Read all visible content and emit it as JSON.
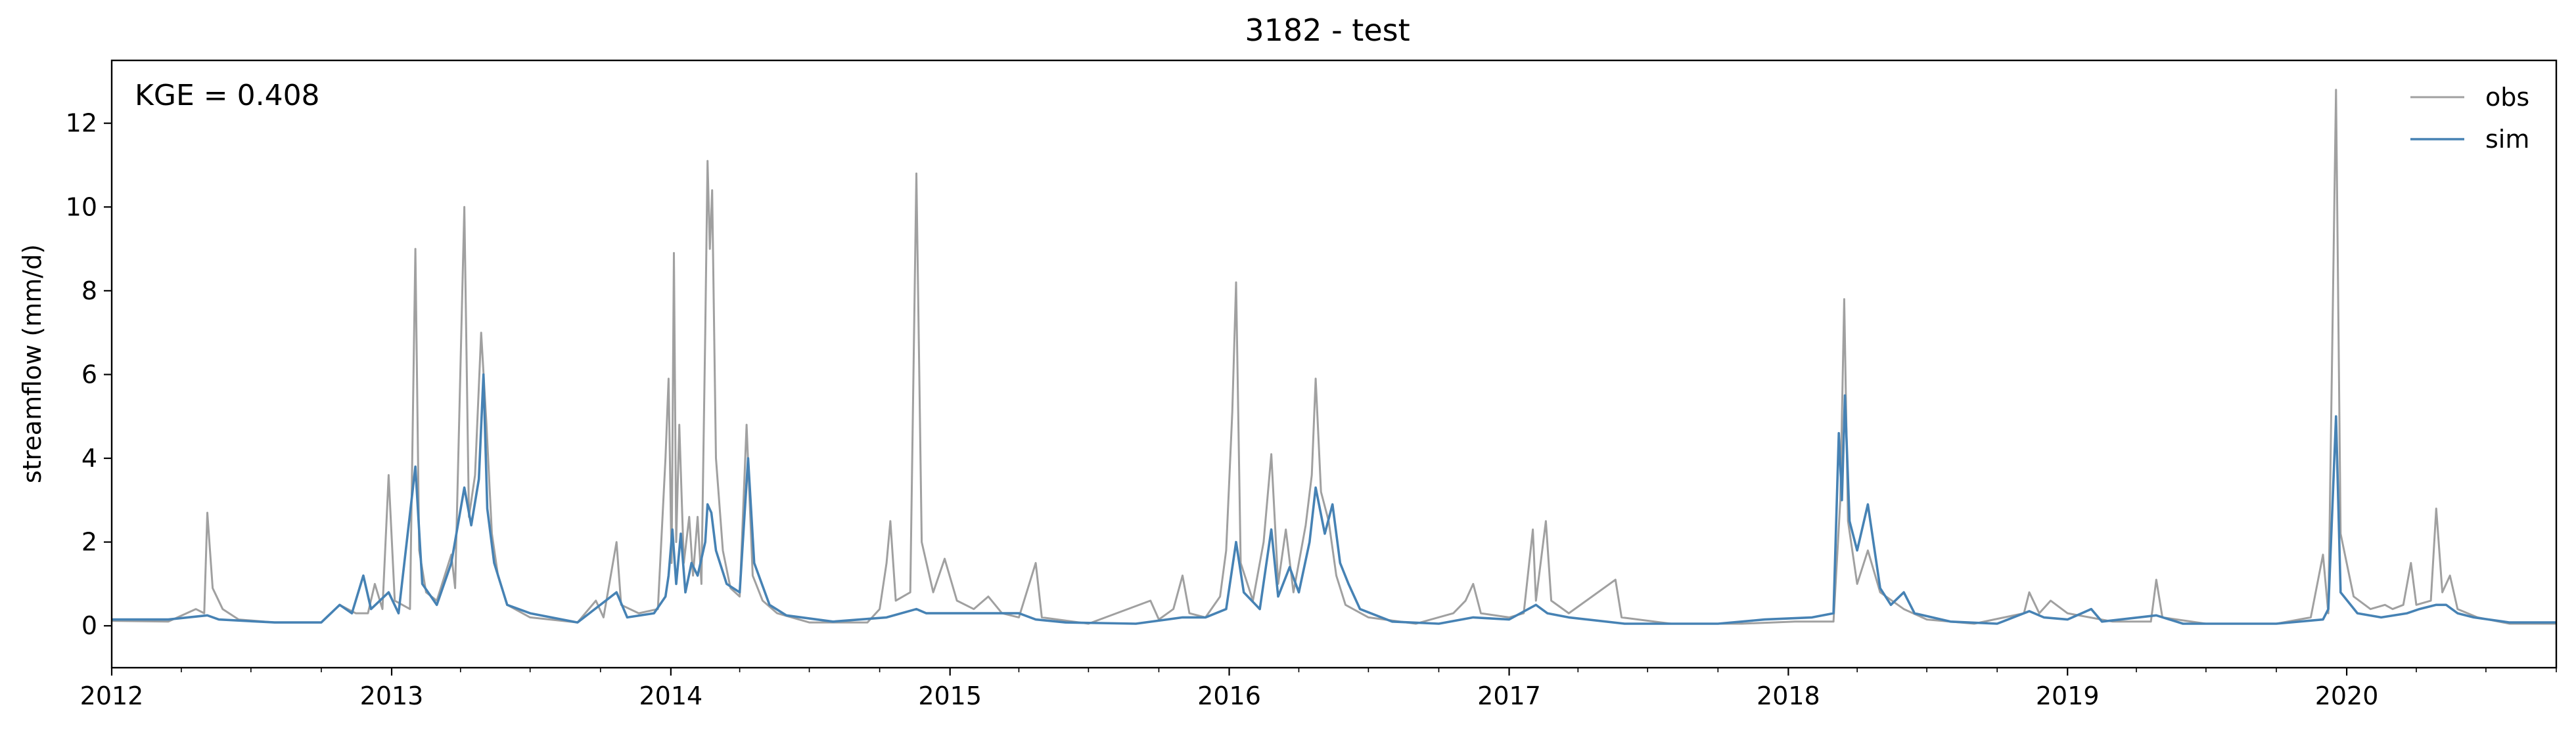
{
  "chart_data": {
    "type": "line",
    "title": "3182 - test",
    "xlabel": "",
    "ylabel": "streamflow (mm/d)",
    "annotation": "KGE = 0.408",
    "xlim": [
      "2012-01-01",
      "2020-10-01"
    ],
    "ylim": [
      -1.0,
      13.5
    ],
    "xticks": [
      "2012",
      "2013",
      "2014",
      "2015",
      "2016",
      "2017",
      "2018",
      "2019",
      "2020"
    ],
    "yticks": [
      0,
      2,
      4,
      6,
      8,
      10,
      12
    ],
    "legend_position": "top-right",
    "grid": false,
    "series": [
      {
        "name": "obs",
        "color": "#a0a0a0",
        "points": [
          [
            "2012-01-01",
            0.12
          ],
          [
            "2012-03-15",
            0.1
          ],
          [
            "2012-04-20",
            0.4
          ],
          [
            "2012-05-01",
            0.3
          ],
          [
            "2012-05-05",
            2.7
          ],
          [
            "2012-05-12",
            0.9
          ],
          [
            "2012-05-25",
            0.4
          ],
          [
            "2012-06-15",
            0.15
          ],
          [
            "2012-08-01",
            0.08
          ],
          [
            "2012-10-01",
            0.08
          ],
          [
            "2012-10-25",
            0.5
          ],
          [
            "2012-11-15",
            0.3
          ],
          [
            "2012-12-01",
            0.3
          ],
          [
            "2012-12-10",
            1.0
          ],
          [
            "2012-12-20",
            0.4
          ],
          [
            "2012-12-28",
            3.6
          ],
          [
            "2013-01-05",
            0.6
          ],
          [
            "2013-01-15",
            0.5
          ],
          [
            "2013-01-25",
            0.4
          ],
          [
            "2013-02-01",
            9.0
          ],
          [
            "2013-02-06",
            1.8
          ],
          [
            "2013-02-15",
            0.8
          ],
          [
            "2013-03-01",
            0.6
          ],
          [
            "2013-03-20",
            1.7
          ],
          [
            "2013-03-25",
            0.9
          ],
          [
            "2013-04-06",
            10.0
          ],
          [
            "2013-04-12",
            2.6
          ],
          [
            "2013-04-20",
            3.6
          ],
          [
            "2013-04-28",
            7.0
          ],
          [
            "2013-05-05",
            4.8
          ],
          [
            "2013-05-12",
            2.2
          ],
          [
            "2013-05-20",
            1.2
          ],
          [
            "2013-06-01",
            0.5
          ],
          [
            "2013-07-01",
            0.2
          ],
          [
            "2013-09-01",
            0.08
          ],
          [
            "2013-09-25",
            0.6
          ],
          [
            "2013-10-05",
            0.2
          ],
          [
            "2013-10-22",
            2.0
          ],
          [
            "2013-10-28",
            0.5
          ],
          [
            "2013-11-20",
            0.3
          ],
          [
            "2013-12-15",
            0.4
          ],
          [
            "2013-12-25",
            4.0
          ],
          [
            "2013-12-29",
            5.9
          ],
          [
            "2014-01-02",
            1.5
          ],
          [
            "2014-01-05",
            8.9
          ],
          [
            "2014-01-08",
            2.0
          ],
          [
            "2014-01-12",
            4.8
          ],
          [
            "2014-01-18",
            1.5
          ],
          [
            "2014-01-25",
            2.6
          ],
          [
            "2014-01-30",
            1.2
          ],
          [
            "2014-02-05",
            2.6
          ],
          [
            "2014-02-10",
            1.0
          ],
          [
            "2014-02-15",
            7.0
          ],
          [
            "2014-02-18",
            11.1
          ],
          [
            "2014-02-21",
            9.0
          ],
          [
            "2014-02-24",
            10.4
          ],
          [
            "2014-03-01",
            4.0
          ],
          [
            "2014-03-10",
            1.8
          ],
          [
            "2014-03-20",
            0.9
          ],
          [
            "2014-04-01",
            0.7
          ],
          [
            "2014-04-10",
            4.8
          ],
          [
            "2014-04-18",
            1.2
          ],
          [
            "2014-05-01",
            0.6
          ],
          [
            "2014-05-20",
            0.3
          ],
          [
            "2014-07-01",
            0.08
          ],
          [
            "2014-09-15",
            0.08
          ],
          [
            "2014-10-01",
            0.4
          ],
          [
            "2014-10-10",
            1.5
          ],
          [
            "2014-10-15",
            2.5
          ],
          [
            "2014-10-22",
            0.6
          ],
          [
            "2014-11-10",
            0.8
          ],
          [
            "2014-11-18",
            10.8
          ],
          [
            "2014-11-25",
            2.0
          ],
          [
            "2014-12-10",
            0.8
          ],
          [
            "2014-12-25",
            1.6
          ],
          [
            "2015-01-10",
            0.6
          ],
          [
            "2015-02-01",
            0.4
          ],
          [
            "2015-02-20",
            0.7
          ],
          [
            "2015-03-10",
            0.3
          ],
          [
            "2015-04-01",
            0.2
          ],
          [
            "2015-04-23",
            1.5
          ],
          [
            "2015-05-01",
            0.2
          ],
          [
            "2015-07-01",
            0.05
          ],
          [
            "2015-09-20",
            0.6
          ],
          [
            "2015-10-01",
            0.15
          ],
          [
            "2015-10-20",
            0.4
          ],
          [
            "2015-11-01",
            1.2
          ],
          [
            "2015-11-10",
            0.3
          ],
          [
            "2015-12-01",
            0.2
          ],
          [
            "2015-12-20",
            0.7
          ],
          [
            "2015-12-28",
            1.8
          ],
          [
            "2016-01-05",
            5.1
          ],
          [
            "2016-01-10",
            8.2
          ],
          [
            "2016-01-16",
            1.5
          ],
          [
            "2016-02-01",
            0.6
          ],
          [
            "2016-02-15",
            2.0
          ],
          [
            "2016-02-25",
            4.1
          ],
          [
            "2016-03-05",
            1.0
          ],
          [
            "2016-03-15",
            2.3
          ],
          [
            "2016-03-25",
            0.8
          ],
          [
            "2016-04-10",
            2.4
          ],
          [
            "2016-04-18",
            3.6
          ],
          [
            "2016-04-23",
            5.9
          ],
          [
            "2016-04-30",
            3.2
          ],
          [
            "2016-05-10",
            2.5
          ],
          [
            "2016-05-20",
            1.2
          ],
          [
            "2016-06-01",
            0.5
          ],
          [
            "2016-07-01",
            0.2
          ],
          [
            "2016-09-01",
            0.05
          ],
          [
            "2016-10-20",
            0.3
          ],
          [
            "2016-11-05",
            0.6
          ],
          [
            "2016-11-15",
            1.0
          ],
          [
            "2016-11-25",
            0.3
          ],
          [
            "2017-01-01",
            0.2
          ],
          [
            "2017-01-20",
            0.3
          ],
          [
            "2017-02-01",
            2.3
          ],
          [
            "2017-02-05",
            0.6
          ],
          [
            "2017-02-18",
            2.5
          ],
          [
            "2017-02-25",
            0.6
          ],
          [
            "2017-03-20",
            0.3
          ],
          [
            "2017-05-20",
            1.1
          ],
          [
            "2017-05-28",
            0.2
          ],
          [
            "2017-08-01",
            0.05
          ],
          [
            "2017-11-01",
            0.05
          ],
          [
            "2018-01-10",
            0.1
          ],
          [
            "2018-03-01",
            0.1
          ],
          [
            "2018-03-10",
            3.0
          ],
          [
            "2018-03-15",
            7.8
          ],
          [
            "2018-03-20",
            2.5
          ],
          [
            "2018-04-01",
            1.0
          ],
          [
            "2018-04-15",
            1.8
          ],
          [
            "2018-05-01",
            0.8
          ],
          [
            "2018-06-01",
            0.4
          ],
          [
            "2018-07-01",
            0.15
          ],
          [
            "2018-09-01",
            0.05
          ],
          [
            "2018-11-05",
            0.3
          ],
          [
            "2018-11-12",
            0.8
          ],
          [
            "2018-11-25",
            0.3
          ],
          [
            "2018-12-10",
            0.6
          ],
          [
            "2019-01-01",
            0.3
          ],
          [
            "2019-03-01",
            0.1
          ],
          [
            "2019-04-20",
            0.1
          ],
          [
            "2019-04-27",
            1.1
          ],
          [
            "2019-05-05",
            0.2
          ],
          [
            "2019-07-01",
            0.05
          ],
          [
            "2019-10-01",
            0.05
          ],
          [
            "2019-11-15",
            0.2
          ],
          [
            "2019-12-01",
            1.7
          ],
          [
            "2019-12-08",
            0.3
          ],
          [
            "2019-12-18",
            12.8
          ],
          [
            "2019-12-24",
            2.2
          ],
          [
            "2020-01-10",
            0.7
          ],
          [
            "2020-02-01",
            0.4
          ],
          [
            "2020-02-20",
            0.5
          ],
          [
            "2020-03-01",
            0.4
          ],
          [
            "2020-03-15",
            0.5
          ],
          [
            "2020-03-25",
            1.5
          ],
          [
            "2020-04-01",
            0.5
          ],
          [
            "2020-04-20",
            0.6
          ],
          [
            "2020-04-27",
            2.8
          ],
          [
            "2020-05-05",
            0.8
          ],
          [
            "2020-05-15",
            1.2
          ],
          [
            "2020-05-25",
            0.4
          ],
          [
            "2020-06-20",
            0.2
          ],
          [
            "2020-08-01",
            0.05
          ],
          [
            "2020-10-01",
            0.05
          ]
        ]
      },
      {
        "name": "sim",
        "color": "#4682b4",
        "points": [
          [
            "2012-01-01",
            0.15
          ],
          [
            "2012-03-15",
            0.15
          ],
          [
            "2012-05-05",
            0.25
          ],
          [
            "2012-05-20",
            0.15
          ],
          [
            "2012-08-01",
            0.08
          ],
          [
            "2012-10-01",
            0.08
          ],
          [
            "2012-10-25",
            0.5
          ],
          [
            "2012-11-10",
            0.3
          ],
          [
            "2012-11-25",
            1.2
          ],
          [
            "2012-12-05",
            0.4
          ],
          [
            "2012-12-28",
            0.8
          ],
          [
            "2013-01-10",
            0.3
          ],
          [
            "2013-02-01",
            3.8
          ],
          [
            "2013-02-10",
            1.0
          ],
          [
            "2013-03-01",
            0.5
          ],
          [
            "2013-03-20",
            1.5
          ],
          [
            "2013-04-06",
            3.3
          ],
          [
            "2013-04-15",
            2.4
          ],
          [
            "2013-04-25",
            3.5
          ],
          [
            "2013-05-01",
            6.0
          ],
          [
            "2013-05-06",
            2.8
          ],
          [
            "2013-05-15",
            1.5
          ],
          [
            "2013-06-01",
            0.5
          ],
          [
            "2013-07-01",
            0.3
          ],
          [
            "2013-09-01",
            0.08
          ],
          [
            "2013-10-22",
            0.8
          ],
          [
            "2013-11-05",
            0.2
          ],
          [
            "2013-12-10",
            0.3
          ],
          [
            "2013-12-25",
            0.7
          ],
          [
            "2013-12-29",
            1.2
          ],
          [
            "2014-01-03",
            2.3
          ],
          [
            "2014-01-08",
            1.0
          ],
          [
            "2014-01-14",
            2.2
          ],
          [
            "2014-01-20",
            0.8
          ],
          [
            "2014-01-28",
            1.5
          ],
          [
            "2014-02-05",
            1.2
          ],
          [
            "2014-02-15",
            2.0
          ],
          [
            "2014-02-18",
            2.9
          ],
          [
            "2014-02-23",
            2.7
          ],
          [
            "2014-03-01",
            1.8
          ],
          [
            "2014-03-15",
            1.0
          ],
          [
            "2014-04-01",
            0.8
          ],
          [
            "2014-04-12",
            4.0
          ],
          [
            "2014-04-20",
            1.5
          ],
          [
            "2014-05-10",
            0.5
          ],
          [
            "2014-06-01",
            0.25
          ],
          [
            "2014-08-01",
            0.1
          ],
          [
            "2014-10-10",
            0.2
          ],
          [
            "2014-11-18",
            0.4
          ],
          [
            "2014-12-01",
            0.3
          ],
          [
            "2014-12-25",
            0.3
          ],
          [
            "2015-01-20",
            0.3
          ],
          [
            "2015-03-01",
            0.3
          ],
          [
            "2015-04-01",
            0.3
          ],
          [
            "2015-04-23",
            0.15
          ],
          [
            "2015-06-01",
            0.08
          ],
          [
            "2015-09-01",
            0.05
          ],
          [
            "2015-11-01",
            0.2
          ],
          [
            "2015-12-01",
            0.2
          ],
          [
            "2015-12-28",
            0.4
          ],
          [
            "2016-01-10",
            2.0
          ],
          [
            "2016-01-20",
            0.8
          ],
          [
            "2016-02-10",
            0.4
          ],
          [
            "2016-02-25",
            2.3
          ],
          [
            "2016-03-05",
            0.7
          ],
          [
            "2016-03-20",
            1.4
          ],
          [
            "2016-04-01",
            0.8
          ],
          [
            "2016-04-15",
            2.0
          ],
          [
            "2016-04-23",
            3.3
          ],
          [
            "2016-05-05",
            2.2
          ],
          [
            "2016-05-15",
            2.9
          ],
          [
            "2016-05-25",
            1.5
          ],
          [
            "2016-06-05",
            1.0
          ],
          [
            "2016-06-20",
            0.4
          ],
          [
            "2016-08-01",
            0.1
          ],
          [
            "2016-10-01",
            0.05
          ],
          [
            "2016-11-15",
            0.2
          ],
          [
            "2017-01-01",
            0.15
          ],
          [
            "2017-02-05",
            0.5
          ],
          [
            "2017-02-20",
            0.3
          ],
          [
            "2017-03-20",
            0.2
          ],
          [
            "2017-06-01",
            0.05
          ],
          [
            "2017-10-01",
            0.05
          ],
          [
            "2017-12-01",
            0.15
          ],
          [
            "2018-02-01",
            0.2
          ],
          [
            "2018-03-01",
            0.3
          ],
          [
            "2018-03-08",
            4.6
          ],
          [
            "2018-03-12",
            3.0
          ],
          [
            "2018-03-16",
            5.5
          ],
          [
            "2018-03-22",
            2.5
          ],
          [
            "2018-04-01",
            1.8
          ],
          [
            "2018-04-15",
            2.9
          ],
          [
            "2018-05-01",
            0.9
          ],
          [
            "2018-05-15",
            0.5
          ],
          [
            "2018-06-01",
            0.8
          ],
          [
            "2018-06-15",
            0.3
          ],
          [
            "2018-08-01",
            0.1
          ],
          [
            "2018-10-01",
            0.05
          ],
          [
            "2018-11-12",
            0.35
          ],
          [
            "2018-12-01",
            0.2
          ],
          [
            "2019-01-01",
            0.15
          ],
          [
            "2019-02-01",
            0.4
          ],
          [
            "2019-02-15",
            0.1
          ],
          [
            "2019-04-27",
            0.25
          ],
          [
            "2019-06-01",
            0.05
          ],
          [
            "2019-10-01",
            0.05
          ],
          [
            "2019-12-01",
            0.15
          ],
          [
            "2019-12-08",
            0.4
          ],
          [
            "2019-12-18",
            5.0
          ],
          [
            "2019-12-24",
            0.8
          ],
          [
            "2020-01-15",
            0.3
          ],
          [
            "2020-02-15",
            0.2
          ],
          [
            "2020-03-20",
            0.3
          ],
          [
            "2020-04-05",
            0.4
          ],
          [
            "2020-04-27",
            0.5
          ],
          [
            "2020-05-10",
            0.5
          ],
          [
            "2020-05-25",
            0.3
          ],
          [
            "2020-06-15",
            0.2
          ],
          [
            "2020-08-01",
            0.08
          ],
          [
            "2020-10-01",
            0.08
          ]
        ]
      }
    ]
  }
}
